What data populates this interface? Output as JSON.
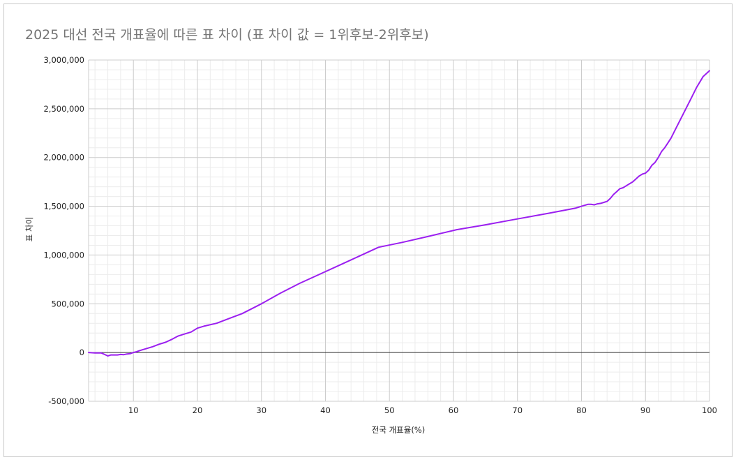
{
  "chart_data": {
    "type": "line",
    "title": "2025 대선 전국 개표율에 따른 표 차이 (표 차이 값 = 1위후보-2위후보)",
    "xlabel": "전국 개표율(%)",
    "ylabel": "표 차이",
    "xlim": [
      3,
      100
    ],
    "ylim": [
      -500000,
      3000000
    ],
    "xticks": [
      10,
      20,
      30,
      40,
      50,
      60,
      70,
      80,
      90,
      100
    ],
    "xtick_labels": [
      "10",
      "20",
      "30",
      "40",
      "50",
      "60",
      "70",
      "80",
      "90",
      "100"
    ],
    "yticks": [
      -500000,
      0,
      500000,
      1000000,
      1500000,
      2000000,
      2500000,
      3000000
    ],
    "ytick_labels": [
      "-500,000",
      "0",
      "500,000",
      "1,000,000",
      "1,500,000",
      "2,000,000",
      "2,500,000",
      "3,000,000"
    ],
    "grid": true,
    "line_color": "#9b1ff0",
    "series": [
      {
        "name": "",
        "x": [
          3,
          4,
          5,
          5.5,
          6,
          6.5,
          7,
          7.5,
          8,
          8.5,
          9,
          9.5,
          10,
          10.5,
          11,
          12,
          13,
          14,
          15,
          16,
          17,
          18,
          19,
          20,
          21,
          23,
          25,
          27,
          30,
          33,
          36,
          39,
          42,
          45,
          48.3,
          52,
          56,
          60.5,
          65,
          70,
          75,
          79,
          79.5,
          80,
          80.5,
          81,
          81.5,
          82,
          82.5,
          83,
          83.5,
          84,
          84.5,
          85,
          85.5,
          86,
          86.5,
          87,
          87.5,
          88,
          88.5,
          89,
          89.5,
          90,
          90.5,
          91,
          91.5,
          92,
          92.5,
          93,
          93.5,
          94,
          95,
          96,
          97,
          98,
          99,
          100
        ],
        "y": [
          0,
          -5000,
          -5000,
          -20000,
          -35000,
          -25000,
          -25000,
          -25000,
          -20000,
          -22000,
          -15000,
          -12000,
          0,
          8000,
          20000,
          40000,
          60000,
          85000,
          105000,
          135000,
          170000,
          190000,
          210000,
          250000,
          270000,
          300000,
          350000,
          400000,
          500000,
          610000,
          710000,
          800000,
          890000,
          980000,
          1080000,
          1130000,
          1190000,
          1260000,
          1310000,
          1370000,
          1430000,
          1480000,
          1490000,
          1500000,
          1510000,
          1520000,
          1520000,
          1515000,
          1525000,
          1530000,
          1540000,
          1550000,
          1580000,
          1620000,
          1650000,
          1680000,
          1690000,
          1710000,
          1730000,
          1750000,
          1780000,
          1810000,
          1830000,
          1840000,
          1870000,
          1920000,
          1950000,
          2000000,
          2060000,
          2100000,
          2150000,
          2200000,
          2330000,
          2460000,
          2590000,
          2720000,
          2830000,
          2890000
        ]
      }
    ]
  }
}
